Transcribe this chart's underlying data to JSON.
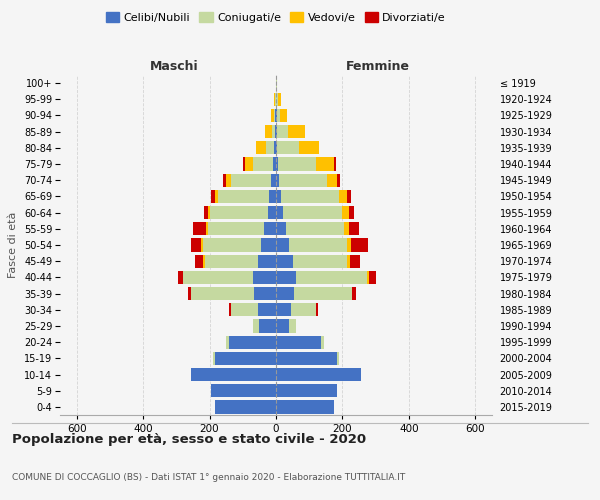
{
  "age_groups": [
    "0-4",
    "5-9",
    "10-14",
    "15-19",
    "20-24",
    "25-29",
    "30-34",
    "35-39",
    "40-44",
    "45-49",
    "50-54",
    "55-59",
    "60-64",
    "65-69",
    "70-74",
    "75-79",
    "80-84",
    "85-89",
    "90-94",
    "95-99",
    "100+"
  ],
  "birth_years": [
    "2015-2019",
    "2010-2014",
    "2005-2009",
    "2000-2004",
    "1995-1999",
    "1990-1994",
    "1985-1989",
    "1980-1984",
    "1975-1979",
    "1970-1974",
    "1965-1969",
    "1960-1964",
    "1955-1959",
    "1950-1954",
    "1945-1949",
    "1940-1944",
    "1935-1939",
    "1930-1934",
    "1925-1929",
    "1920-1924",
    "≤ 1919"
  ],
  "colors": {
    "celibi": "#4472c4",
    "coniugati": "#c5d9a0",
    "vedovi": "#ffc000",
    "divorziati": "#cc0000"
  },
  "males": {
    "celibi": [
      185,
      195,
      255,
      185,
      140,
      50,
      55,
      65,
      70,
      55,
      45,
      35,
      25,
      20,
      15,
      8,
      5,
      3,
      2,
      1,
      0
    ],
    "coniugati": [
      0,
      0,
      0,
      5,
      10,
      20,
      80,
      190,
      210,
      160,
      175,
      170,
      175,
      155,
      120,
      60,
      25,
      10,
      5,
      2,
      0
    ],
    "vedovi": [
      0,
      0,
      0,
      0,
      0,
      0,
      0,
      0,
      0,
      5,
      5,
      5,
      5,
      10,
      15,
      25,
      30,
      20,
      8,
      2,
      0
    ],
    "divorziati": [
      0,
      0,
      0,
      0,
      0,
      0,
      5,
      10,
      15,
      25,
      30,
      40,
      12,
      10,
      8,
      5,
      0,
      0,
      0,
      0,
      0
    ]
  },
  "females": {
    "celibi": [
      175,
      185,
      255,
      185,
      135,
      40,
      45,
      55,
      60,
      50,
      40,
      30,
      20,
      15,
      8,
      5,
      4,
      2,
      2,
      1,
      0
    ],
    "coniugati": [
      0,
      0,
      0,
      5,
      10,
      20,
      75,
      175,
      215,
      165,
      175,
      175,
      180,
      175,
      145,
      115,
      65,
      35,
      10,
      5,
      2
    ],
    "vedovi": [
      0,
      0,
      0,
      0,
      0,
      0,
      0,
      0,
      5,
      8,
      12,
      15,
      20,
      25,
      30,
      55,
      60,
      50,
      20,
      8,
      2
    ],
    "divorziati": [
      0,
      0,
      0,
      0,
      0,
      0,
      5,
      10,
      20,
      30,
      50,
      30,
      15,
      12,
      10,
      5,
      0,
      0,
      0,
      0,
      0
    ]
  },
  "title": "Popolazione per età, sesso e stato civile - 2020",
  "subtitle": "COMUNE DI COCCAGLIO (BS) - Dati ISTAT 1° gennaio 2020 - Elaborazione TUTTITALIA.IT",
  "xlabel_left": "Maschi",
  "xlabel_right": "Femmine",
  "ylabel_left": "Fasce di età",
  "xlim": 650,
  "legend_labels": [
    "Celibi/Nubili",
    "Coniugati/e",
    "Vedovi/e",
    "Divorziati/e"
  ],
  "bg_color": "#f5f5f5",
  "grid_color": "#cccccc"
}
